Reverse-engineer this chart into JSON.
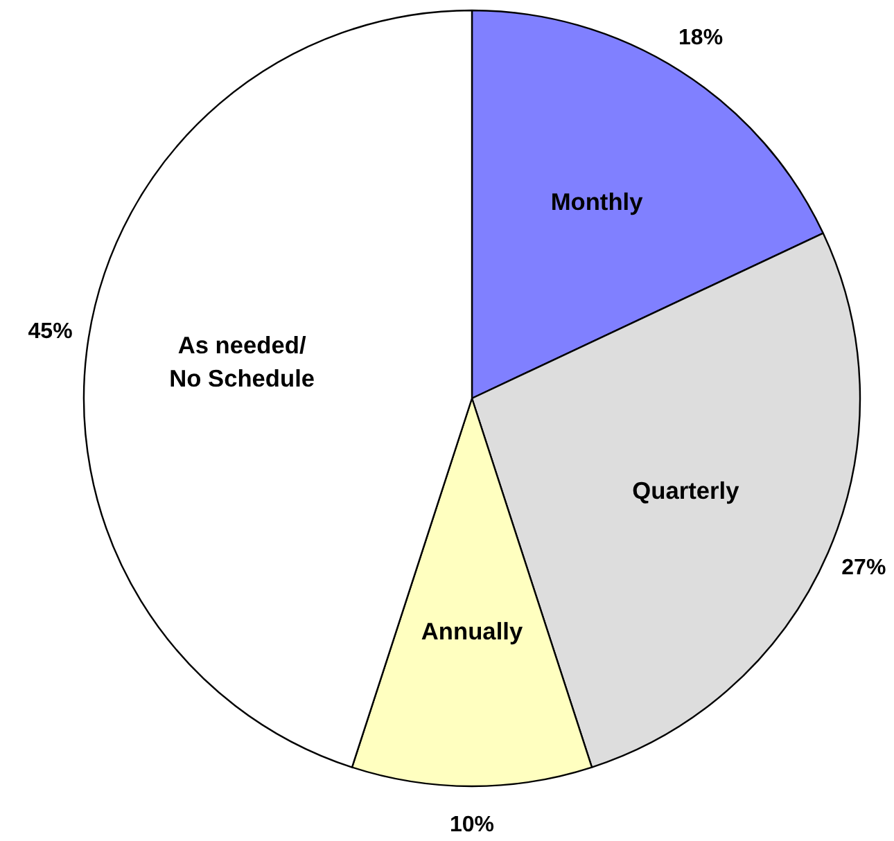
{
  "chart_data": {
    "type": "pie",
    "categories": [
      "Monthly",
      "Quarterly",
      "Annually",
      "As needed/\nNo Schedule"
    ],
    "values": [
      18,
      27,
      10,
      45
    ],
    "colors": [
      "#8080ff",
      "#dddddd",
      "#ffffc0",
      "#ffffff"
    ],
    "value_labels": [
      "18%",
      "27%",
      "10%",
      "45%"
    ]
  }
}
